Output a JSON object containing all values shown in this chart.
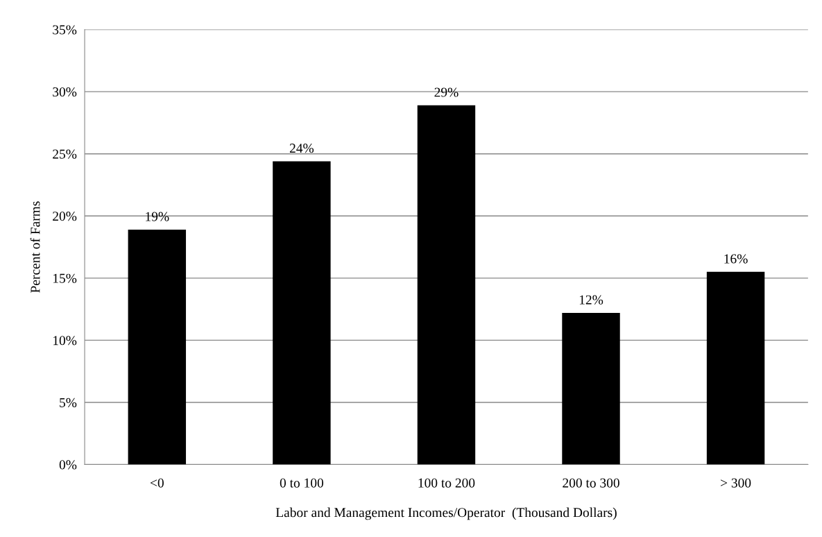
{
  "chart_data": {
    "type": "bar",
    "xlabel": "Labor and Management Incomes/Operator  (Thousand Dollars)",
    "ylabel": "Percent of Farms",
    "categories": [
      "<0",
      "0 to 100",
      "100 to 200",
      "200 to 300",
      "> 300"
    ],
    "values": [
      18.9,
      24.4,
      28.9,
      12.2,
      15.5
    ],
    "value_labels": [
      "19%",
      "24%",
      "29%",
      "12%",
      "16%"
    ],
    "color": "#000000",
    "ylim": [
      0,
      35
    ],
    "yticks": [
      {
        "value": 0,
        "label": "0%"
      },
      {
        "value": 5,
        "label": "5%"
      },
      {
        "value": 10,
        "label": "10%"
      },
      {
        "value": 15,
        "label": "15%"
      },
      {
        "value": 20,
        "label": "20%"
      },
      {
        "value": 25,
        "label": "25%"
      },
      {
        "value": 30,
        "label": "30%"
      },
      {
        "value": 35,
        "label": "35%"
      }
    ],
    "grid": "y",
    "legend": false
  }
}
